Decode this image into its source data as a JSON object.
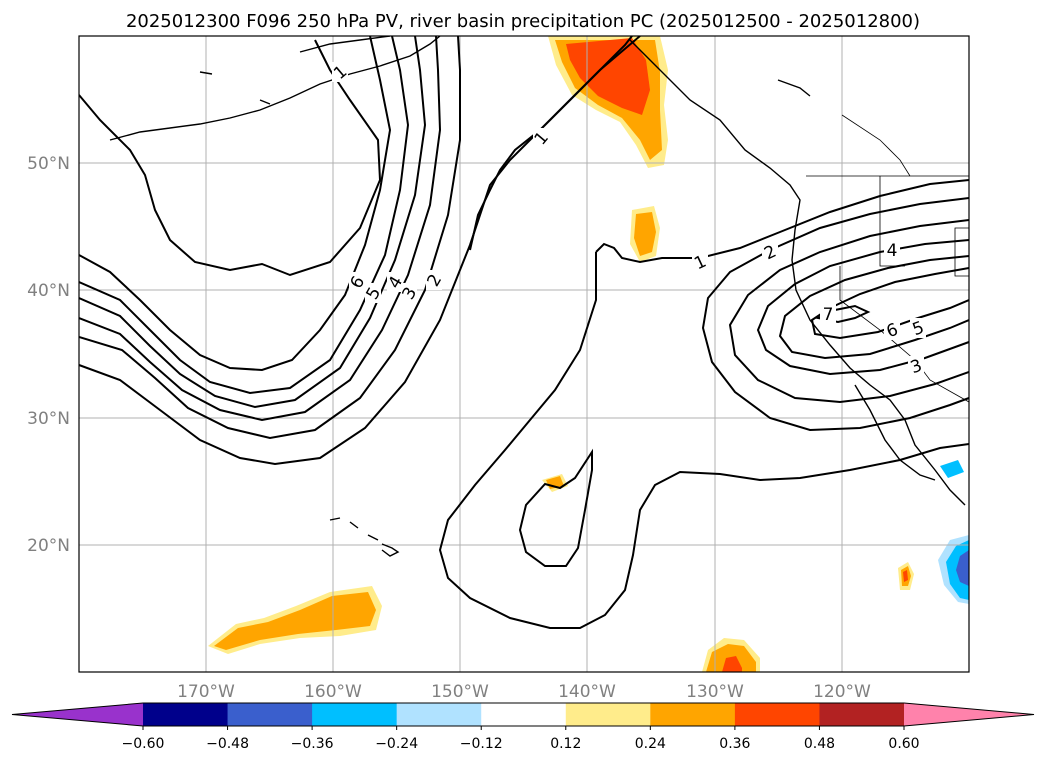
{
  "title": "2025012300 F096 250 hPa PV, river basin precipitation PC (2025012500 - 2025012800)",
  "map": {
    "lat_labels": [
      "50°N",
      "40°N",
      "30°N",
      "20°N"
    ],
    "lon_labels": [
      "170°W",
      "160°W",
      "150°W",
      "140°W",
      "130°W",
      "120°W"
    ]
  },
  "pv_contour_labels": [
    {
      "id": "w1",
      "text": "1"
    },
    {
      "id": "w6",
      "text": "6"
    },
    {
      "id": "w5",
      "text": "5"
    },
    {
      "id": "w4",
      "text": "4"
    },
    {
      "id": "w3",
      "text": "3"
    },
    {
      "id": "w2",
      "text": "2"
    },
    {
      "id": "c1",
      "text": "1"
    },
    {
      "id": "e1",
      "text": "1"
    },
    {
      "id": "e2",
      "text": "2"
    },
    {
      "id": "e4",
      "text": "4"
    },
    {
      "id": "e7",
      "text": "7"
    },
    {
      "id": "e6",
      "text": "6"
    },
    {
      "id": "e5",
      "text": "5"
    },
    {
      "id": "e3",
      "text": "3"
    }
  ],
  "colorbar": {
    "tick_labels": [
      "−0.60",
      "−0.48",
      "−0.36",
      "−0.24",
      "−0.12",
      "0.12",
      "0.24",
      "0.36",
      "0.48",
      "0.60"
    ],
    "colors": [
      "#9932cc",
      "#00008b",
      "#3a5fcd",
      "#00bfff",
      "#b0e2ff",
      "#ffffff",
      "#ffec8b",
      "#ffa500",
      "#ff4500",
      "#b22222",
      "#ff82ab"
    ]
  }
}
